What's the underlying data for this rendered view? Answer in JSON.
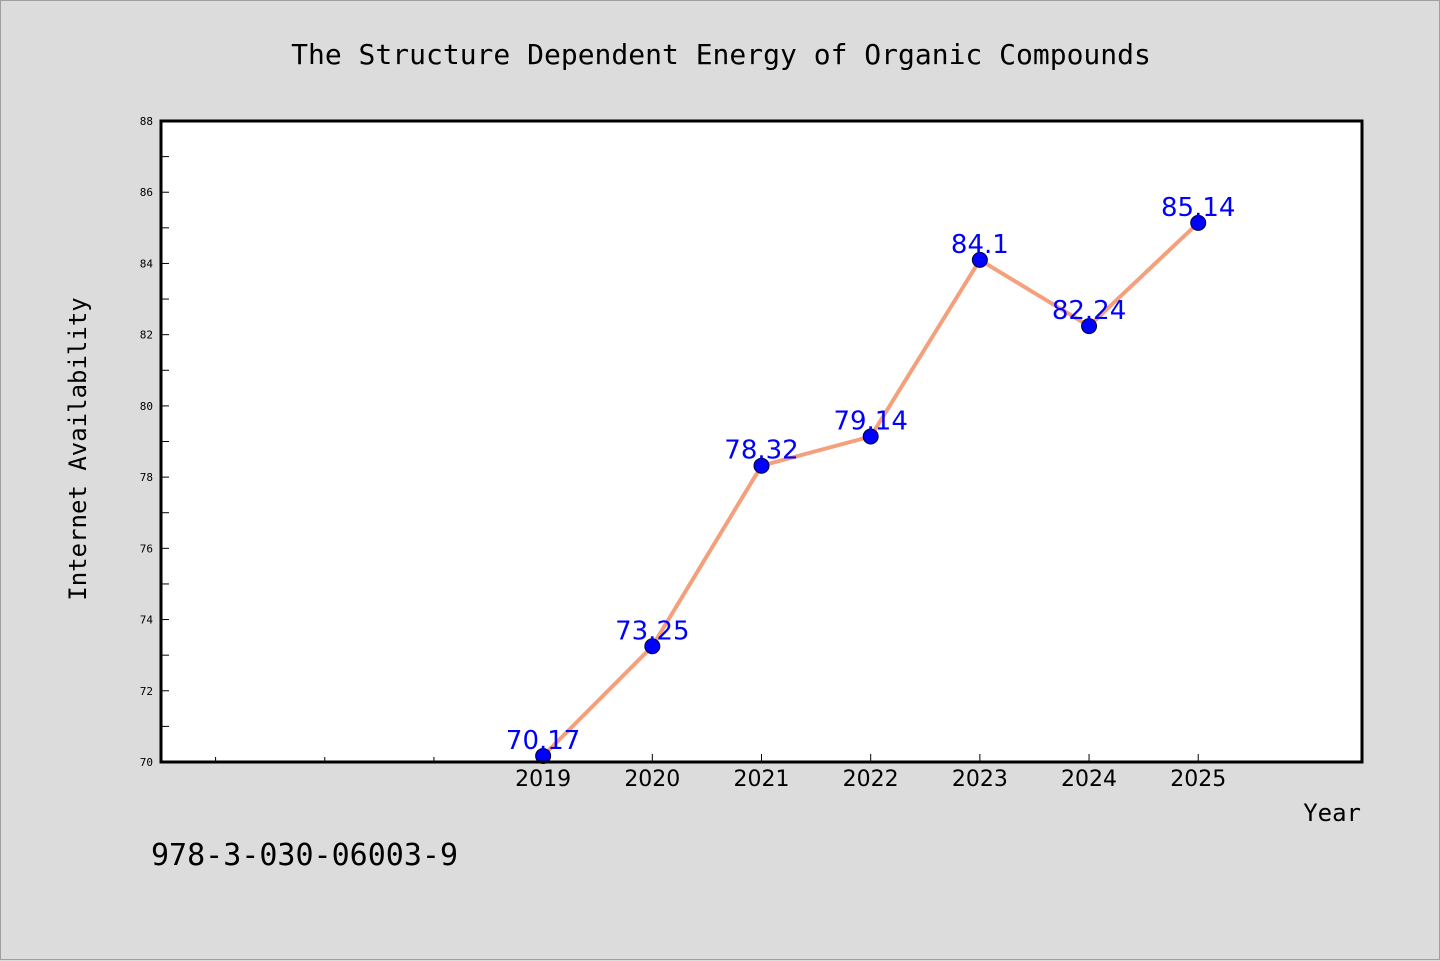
{
  "chart_data": {
    "type": "line",
    "title": "The Structure Dependent Energy of Organic Compounds",
    "xlabel": "Year",
    "ylabel": "Internet Availability",
    "footer_id": "978-3-030-06003-9",
    "x_min": 2015.5,
    "x_max": 2026.5,
    "ylim": [
      70,
      88
    ],
    "y_ticks": [
      70,
      72,
      74,
      76,
      78,
      80,
      82,
      84,
      86,
      88
    ],
    "x_minor_ticks": [
      2016,
      2017,
      2018
    ],
    "grid": false,
    "series": [
      {
        "x": [
          "2019",
          "2020",
          "2021",
          "2022",
          "2023",
          "2024",
          "2025"
        ],
        "values": [
          70.17,
          73.25,
          78.32,
          79.14,
          84.1,
          82.24,
          85.14
        ],
        "labels": [
          "70.17",
          "73.25",
          "78.32",
          "79.14",
          "84.1",
          "82.24",
          "85.14"
        ],
        "line_color": "#f4a07c",
        "marker_color": "#0000ff",
        "label_color": "#0000ff"
      }
    ]
  }
}
